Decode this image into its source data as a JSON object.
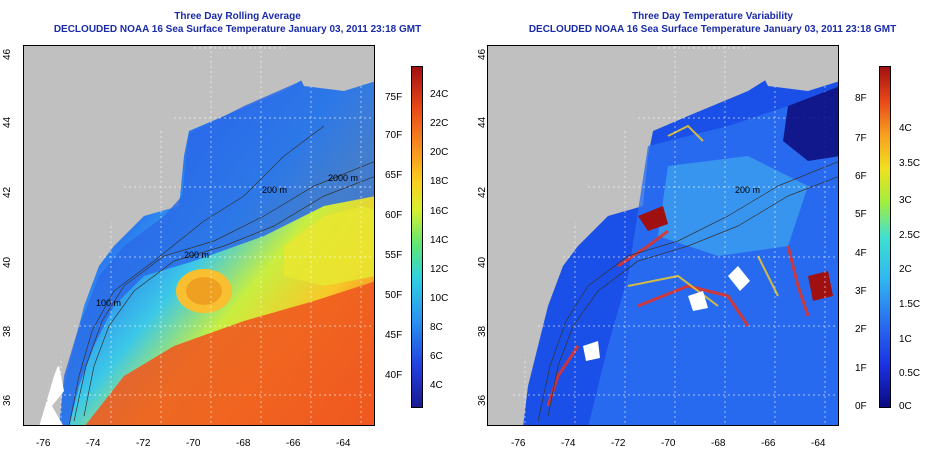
{
  "left_panel": {
    "title": "Three Day Rolling Average",
    "subtitle": "DECLOUDED NOAA 16 Sea Surface Temperature January 03, 2011 23:18 GMT",
    "y_ticks": [
      "46",
      "44",
      "42",
      "40",
      "38",
      "36"
    ],
    "x_ticks": [
      "-76",
      "-74",
      "-72",
      "-70",
      "-68",
      "-66",
      "-64"
    ],
    "colorbar_f": [
      "75F",
      "70F",
      "65F",
      "60F",
      "55F",
      "50F",
      "45F",
      "40F"
    ],
    "colorbar_c": [
      "24C",
      "22C",
      "20C",
      "18C",
      "16C",
      "14C",
      "12C",
      "10C",
      "8C",
      "6C",
      "4C"
    ],
    "contour_labels": [
      "2000 m",
      "200 m",
      "100 m",
      "200 m"
    ]
  },
  "right_panel": {
    "title": "Three Day Temperature Variability",
    "subtitle": "DECLOUDED NOAA 16 Sea Surface Temperature January 03, 2011 23:18 GMT",
    "y_ticks": [
      "46",
      "44",
      "42",
      "40",
      "38",
      "36"
    ],
    "x_ticks": [
      "-76",
      "-74",
      "-72",
      "-70",
      "-68",
      "-66",
      "-64"
    ],
    "colorbar_f": [
      "8F",
      "7F",
      "6F",
      "5F",
      "4F",
      "3F",
      "2F",
      "1F",
      "0F"
    ],
    "colorbar_c": [
      "4C",
      "3.5C",
      "3C",
      "2.5C",
      "2C",
      "1.5C",
      "1C",
      "0.5C",
      "0C"
    ],
    "contour_labels": [
      "200 m"
    ]
  },
  "colors": {
    "title": "#1a2ba8",
    "land": "#c0c0c0",
    "cloud": "#ffffff"
  }
}
